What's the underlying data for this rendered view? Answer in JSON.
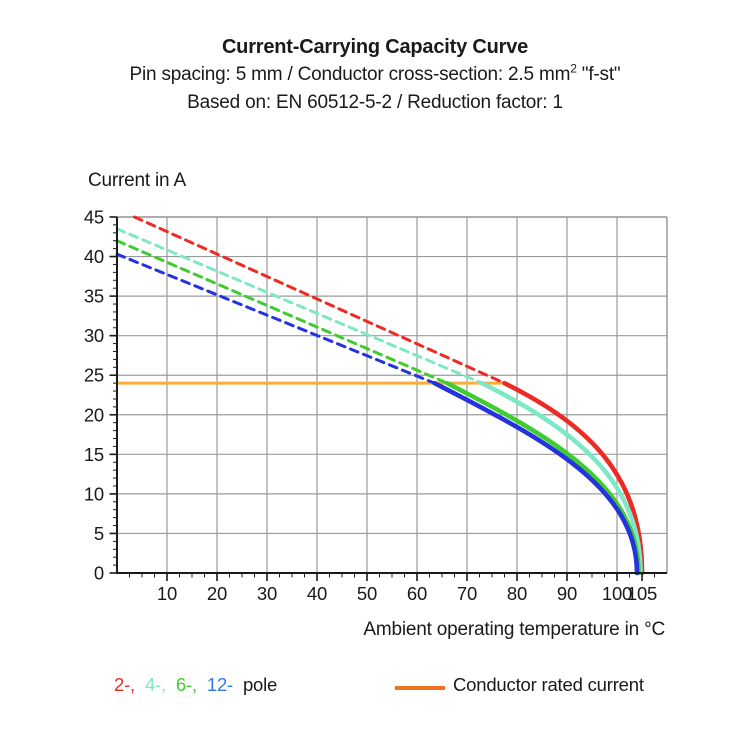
{
  "header": {
    "title": "Current-Carrying Capacity Curve",
    "subtitle_prefix": "Pin spacing: 5 mm / Conductor cross-section: 2.5 mm",
    "subtitle_sup": "2",
    "subtitle_suffix": " \"f-st\"",
    "basis": "Based on: EN 60512-5-2 / Reduction factor: 1"
  },
  "axes": {
    "y_title": "Current in A",
    "x_title": "Ambient operating temperature in °C"
  },
  "legend": {
    "poles": [
      {
        "text": "2-,",
        "color": "#ed2a24"
      },
      {
        "text": "4-,",
        "color": "#7de8c6"
      },
      {
        "text": "6-,",
        "color": "#3fcc2f"
      },
      {
        "text": "12-",
        "color": "#2e78e8"
      },
      {
        "text": "pole",
        "color": "#1a1a1a"
      }
    ],
    "rated_label": "Conductor rated current",
    "rated_swatch_color": "#f2711c"
  },
  "chart_data": {
    "type": "line",
    "title": "Current-Carrying Capacity Curve",
    "xlabel": "Ambient operating temperature in °C",
    "ylabel": "Current in A",
    "xlim": [
      0,
      110
    ],
    "ylim": [
      0,
      45
    ],
    "x_tick_labels": [
      10,
      20,
      30,
      40,
      50,
      60,
      70,
      80,
      90,
      100,
      105
    ],
    "y_tick_labels": [
      0,
      5,
      10,
      15,
      20,
      25,
      30,
      35,
      40,
      45
    ],
    "x_gridlines": [
      10,
      20,
      30,
      40,
      50,
      60,
      70,
      80,
      90,
      100
    ],
    "y_gridlines": [
      5,
      10,
      15,
      20,
      25,
      30,
      35,
      40,
      45
    ],
    "x_minor_step": 2.5,
    "y_minor_step": 1,
    "grid_color": "#9b9b9b",
    "axis_color": "#1a1a1a",
    "rated_current": {
      "value": 24,
      "x_from": 0,
      "x_to": 77.5,
      "color": "#fbad3c",
      "label": "Conductor rated current"
    },
    "series": [
      {
        "name": "2-pole",
        "color": "#ed2a24",
        "dash_from": [
          3.5,
          45
        ],
        "transition": [
          77.5,
          24
        ],
        "solid_c1": [
          95,
          18.5
        ],
        "solid_c2": [
          105,
          12
        ],
        "end": [
          105,
          0
        ]
      },
      {
        "name": "4-pole",
        "color": "#7de8c6",
        "dash_from": [
          0,
          43.5
        ],
        "transition": [
          73,
          24
        ],
        "solid_c1": [
          92,
          18
        ],
        "solid_c2": [
          104.7,
          11.5
        ],
        "end": [
          104.7,
          0
        ]
      },
      {
        "name": "6-pole",
        "color": "#3fcc2f",
        "dash_from": [
          0,
          42
        ],
        "transition": [
          66,
          24
        ],
        "solid_c1": [
          87,
          17.2
        ],
        "solid_c2": [
          104.3,
          11
        ],
        "end": [
          104.3,
          0
        ]
      },
      {
        "name": "12-pole",
        "color": "#2433dd",
        "dash_from": [
          0,
          40.3
        ],
        "transition": [
          63.5,
          24
        ],
        "solid_c1": [
          85,
          17
        ],
        "solid_c2": [
          104,
          11
        ],
        "end": [
          104,
          0
        ]
      }
    ]
  }
}
